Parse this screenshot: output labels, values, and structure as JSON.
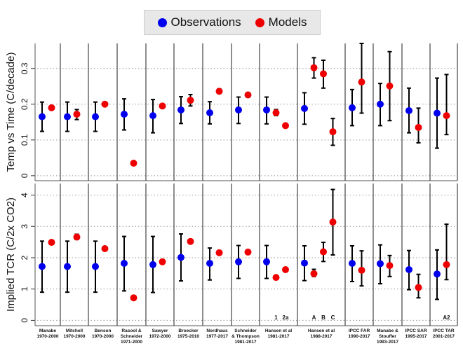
{
  "legend": {
    "observations": "Observations",
    "models": "Models"
  },
  "colors": {
    "observations": "#0000ee",
    "models": "#ee0000",
    "errorbar": "#000000"
  },
  "chart_data": {
    "type": "scatter",
    "panels": [
      {
        "ylabel": "Temp vs Time (C/decade)",
        "ylim": [
          -0.014,
          0.37
        ],
        "ticks": [
          "0",
          "0.1",
          "0.2",
          "0.3"
        ],
        "tick_values": [
          0,
          0.1,
          0.2,
          0.3
        ],
        "grid": true
      },
      {
        "ylabel": "Implied TCR (C/2x CO2)",
        "ylim": [
          -0.17,
          4.37
        ],
        "ticks": [
          "0",
          "1",
          "2",
          "3",
          "4"
        ],
        "tick_values": [
          0,
          1,
          2,
          3,
          4
        ],
        "grid": true
      }
    ],
    "legend_placement": "top",
    "columns": [
      {
        "label": [
          "Manabe",
          "1970-2000"
        ],
        "obs": {
          "temp": [
            0.165,
            0.124,
            0.206
          ],
          "tcr": [
            1.72,
            0.9,
            2.53
          ]
        },
        "models": [
          {
            "label": "",
            "temp": [
              0.19,
              null,
              null
            ],
            "tcr": [
              2.49,
              null,
              null
            ]
          }
        ]
      },
      {
        "label": [
          "Mitchell",
          "1970-2000"
        ],
        "obs": {
          "temp": [
            0.165,
            0.124,
            0.206
          ],
          "tcr": [
            1.72,
            0.9,
            2.53
          ]
        },
        "models": [
          {
            "label": "",
            "temp": [
              0.172,
              0.157,
              0.185
            ],
            "tcr": [
              2.66,
              2.58,
              2.75
            ]
          }
        ]
      },
      {
        "label": [
          "Benson",
          "1970-2000"
        ],
        "obs": {
          "temp": [
            0.165,
            0.124,
            0.206
          ],
          "tcr": [
            1.72,
            0.9,
            2.53
          ]
        },
        "models": [
          {
            "label": "",
            "temp": [
              0.2,
              null,
              null
            ],
            "tcr": [
              2.29,
              null,
              null
            ]
          }
        ]
      },
      {
        "label": [
          "Rasool &",
          "Schneider",
          "1971-2000"
        ],
        "obs": {
          "temp": [
            0.172,
            0.128,
            0.215
          ],
          "tcr": [
            1.82,
            0.94,
            2.68
          ]
        },
        "models": [
          {
            "label": "",
            "temp": [
              0.035,
              null,
              null
            ],
            "tcr": [
              0.72,
              null,
              null
            ]
          }
        ]
      },
      {
        "label": [
          "Sawyer",
          "1972-2000"
        ],
        "obs": {
          "temp": [
            0.168,
            0.12,
            0.213
          ],
          "tcr": [
            1.78,
            0.89,
            2.68
          ]
        },
        "models": [
          {
            "label": "",
            "temp": [
              0.195,
              null,
              null
            ],
            "tcr": [
              1.87,
              null,
              null
            ]
          }
        ]
      },
      {
        "label": [
          "Broecker",
          "1975-2010"
        ],
        "obs": {
          "temp": [
            0.184,
            0.146,
            0.221
          ],
          "tcr": [
            2.01,
            1.26,
            2.76
          ]
        },
        "models": [
          {
            "label": "",
            "temp": [
              0.211,
              0.195,
              0.227
            ],
            "tcr": [
              2.52,
              null,
              null
            ]
          }
        ]
      },
      {
        "label": [
          "Nordhaus",
          "1977-2017"
        ],
        "obs": {
          "temp": [
            0.176,
            0.145,
            0.207
          ],
          "tcr": [
            1.82,
            1.29,
            2.31
          ]
        },
        "models": [
          {
            "label": "",
            "temp": [
              0.236,
              0.23,
              0.243
            ],
            "tcr": [
              2.16,
              null,
              null
            ]
          }
        ]
      },
      {
        "label": [
          "Schneider",
          "& Thompson",
          "1981-2017"
        ],
        "obs": {
          "temp": [
            0.184,
            0.146,
            0.22
          ],
          "tcr": [
            1.87,
            1.34,
            2.39
          ]
        },
        "models": [
          {
            "label": "",
            "temp": [
              0.226,
              null,
              null
            ],
            "tcr": [
              2.18,
              null,
              null
            ]
          }
        ]
      },
      {
        "label": [
          "Hansen et al",
          "1981-2017"
        ],
        "obs": {
          "temp": [
            0.184,
            0.145,
            0.22
          ],
          "tcr": [
            1.87,
            1.34,
            2.39
          ]
        },
        "models": [
          {
            "label": "1",
            "temp": [
              0.176,
              0.168,
              0.185
            ],
            "tcr": [
              1.37,
              null,
              null
            ]
          },
          {
            "label": "2a",
            "temp": [
              0.14,
              null,
              null
            ],
            "tcr": [
              1.62,
              null,
              null
            ]
          }
        ]
      },
      {
        "label": [
          "Hansen et al",
          "1988-2017"
        ],
        "obs": {
          "temp": [
            0.188,
            0.144,
            0.232
          ],
          "tcr": [
            1.83,
            1.27,
            2.38
          ]
        },
        "models": [
          {
            "label": "A",
            "temp": [
              0.302,
              0.273,
              0.33
            ],
            "tcr": [
              1.49,
              1.4,
              1.63
            ]
          },
          {
            "label": "B",
            "temp": [
              0.285,
              0.245,
              0.323
            ],
            "tcr": [
              2.19,
              1.88,
              2.49
            ]
          },
          {
            "label": "C",
            "temp": [
              0.123,
              0.085,
              0.16
            ],
            "tcr": [
              3.14,
              2.09,
              4.18
            ]
          }
        ]
      },
      {
        "label": [
          "IPCC FAR",
          "1990-2017"
        ],
        "obs": {
          "temp": [
            0.19,
            0.14,
            0.241
          ],
          "tcr": [
            1.82,
            1.24,
            2.38
          ]
        },
        "models": [
          {
            "label": "",
            "temp": [
              0.262,
              0.175,
              0.37
            ],
            "tcr": [
              1.6,
              1.1,
              2.22
            ]
          }
        ]
      },
      {
        "label": [
          "Manabe &",
          "Stouffer",
          "1993-2017"
        ],
        "obs": {
          "temp": [
            0.2,
            0.14,
            0.258
          ],
          "tcr": [
            1.81,
            1.17,
            2.41
          ]
        },
        "models": [
          {
            "label": "",
            "temp": [
              0.251,
              0.154,
              0.347
            ],
            "tcr": [
              1.75,
              1.4,
              2.07
            ]
          }
        ]
      },
      {
        "label": [
          "IPCC SAR",
          "1995-2017"
        ],
        "obs": {
          "temp": [
            0.182,
            0.12,
            0.245
          ],
          "tcr": [
            1.62,
            0.98,
            2.23
          ]
        },
        "models": [
          {
            "label": "",
            "temp": [
              0.135,
              0.092,
              0.189
            ],
            "tcr": [
              1.05,
              0.72,
              1.47
            ]
          }
        ]
      },
      {
        "label": [
          "IPCC TAR",
          "2001-2017"
        ],
        "obs": {
          "temp": [
            0.175,
            0.077,
            0.273
          ],
          "tcr": [
            1.48,
            0.67,
            2.25
          ]
        },
        "models": [
          {
            "label": "A2",
            "temp": [
              0.168,
              0.115,
              0.283
            ],
            "tcr": [
              1.78,
              1.3,
              3.07
            ]
          }
        ]
      }
    ]
  }
}
